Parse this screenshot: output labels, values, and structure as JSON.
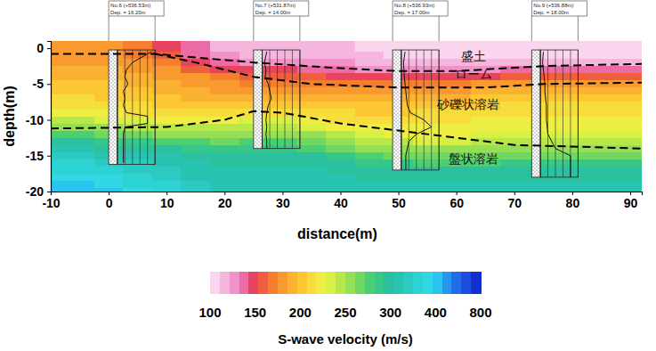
{
  "chart_data": {
    "type": "heatmap",
    "x_label": "distance(m)",
    "y_label": "depth(m)",
    "xlim": [
      -10,
      92
    ],
    "ylim": [
      -20,
      1
    ],
    "xticks": [
      -10,
      0,
      10,
      20,
      30,
      40,
      50,
      60,
      70,
      80,
      90
    ],
    "yticks": [
      0,
      -5,
      -10,
      -15,
      -20
    ],
    "x_edges": [
      -10,
      -7.5,
      -2.5,
      2.5,
      7.5,
      12.5,
      17.5,
      22.5,
      27.5,
      32.5,
      37.5,
      42.5,
      47.5,
      52.5,
      57.5,
      62.5,
      67.5,
      72.5,
      77.5,
      82.5,
      87.5,
      92
    ],
    "y_edges": [
      1,
      -0.5,
      -1.5,
      -2.5,
      -3.5,
      -4.5,
      -5.5,
      -6.5,
      -7.5,
      -8.5,
      -9.5,
      -10.5,
      -11.5,
      -12.5,
      -13.5,
      -14.5,
      -15.5,
      -16.5,
      -17.5,
      -18.5,
      -19.5,
      -20
    ],
    "values": [
      [
        175,
        175,
        175,
        165,
        150,
        135,
        120,
        115,
        115,
        115,
        115,
        110,
        110,
        110,
        110,
        110,
        110,
        110,
        110,
        110,
        110
      ],
      [
        180,
        180,
        180,
        170,
        155,
        140,
        125,
        120,
        120,
        120,
        120,
        115,
        110,
        110,
        110,
        110,
        110,
        110,
        110,
        110,
        110
      ],
      [
        185,
        185,
        185,
        180,
        165,
        150,
        135,
        130,
        130,
        130,
        125,
        120,
        115,
        115,
        115,
        115,
        115,
        115,
        115,
        115,
        115
      ],
      [
        190,
        190,
        190,
        185,
        175,
        160,
        150,
        145,
        145,
        140,
        135,
        130,
        130,
        130,
        130,
        130,
        135,
        140,
        140,
        140,
        140
      ],
      [
        195,
        195,
        195,
        190,
        185,
        175,
        165,
        160,
        160,
        155,
        150,
        150,
        150,
        150,
        150,
        150,
        155,
        160,
        160,
        160,
        160
      ],
      [
        200,
        200,
        200,
        195,
        190,
        185,
        175,
        170,
        170,
        170,
        170,
        165,
        165,
        165,
        170,
        175,
        180,
        180,
        180,
        180,
        180
      ],
      [
        205,
        205,
        200,
        200,
        195,
        190,
        185,
        180,
        180,
        180,
        180,
        180,
        180,
        180,
        185,
        190,
        190,
        190,
        190,
        190,
        190
      ],
      [
        210,
        210,
        205,
        205,
        200,
        195,
        195,
        195,
        195,
        195,
        190,
        190,
        190,
        195,
        195,
        200,
        200,
        200,
        200,
        200,
        200
      ],
      [
        215,
        215,
        210,
        210,
        205,
        205,
        205,
        205,
        205,
        200,
        200,
        200,
        200,
        200,
        205,
        205,
        210,
        210,
        210,
        210,
        210
      ],
      [
        225,
        225,
        220,
        215,
        215,
        215,
        215,
        215,
        215,
        210,
        210,
        205,
        205,
        210,
        210,
        215,
        215,
        215,
        215,
        215,
        215
      ],
      [
        240,
        240,
        235,
        230,
        225,
        225,
        225,
        230,
        230,
        220,
        215,
        210,
        210,
        215,
        215,
        220,
        220,
        220,
        220,
        220,
        220
      ],
      [
        255,
        255,
        250,
        245,
        240,
        240,
        240,
        245,
        245,
        235,
        225,
        220,
        220,
        220,
        220,
        225,
        225,
        225,
        225,
        225,
        225
      ],
      [
        275,
        275,
        270,
        265,
        260,
        255,
        255,
        260,
        260,
        250,
        240,
        230,
        225,
        225,
        225,
        230,
        230,
        230,
        230,
        230,
        230
      ],
      [
        295,
        295,
        290,
        285,
        280,
        275,
        270,
        275,
        275,
        265,
        255,
        245,
        240,
        235,
        235,
        240,
        240,
        240,
        240,
        240,
        240
      ],
      [
        310,
        310,
        305,
        300,
        295,
        290,
        285,
        290,
        290,
        280,
        270,
        260,
        255,
        250,
        250,
        250,
        255,
        255,
        255,
        255,
        255
      ],
      [
        330,
        330,
        325,
        315,
        310,
        300,
        300,
        300,
        300,
        295,
        285,
        275,
        270,
        265,
        265,
        265,
        270,
        270,
        270,
        270,
        270
      ],
      [
        350,
        350,
        340,
        330,
        320,
        310,
        305,
        305,
        305,
        305,
        300,
        290,
        285,
        280,
        280,
        280,
        285,
        285,
        285,
        285,
        285
      ],
      [
        370,
        370,
        360,
        345,
        330,
        320,
        310,
        310,
        310,
        310,
        305,
        300,
        295,
        295,
        295,
        295,
        295,
        295,
        295,
        295,
        295
      ],
      [
        390,
        390,
        380,
        360,
        340,
        325,
        315,
        315,
        315,
        315,
        310,
        305,
        305,
        305,
        305,
        305,
        305,
        305,
        305,
        305,
        305
      ],
      [
        400,
        400,
        390,
        370,
        350,
        330,
        320,
        320,
        320,
        320,
        315,
        310,
        310,
        310,
        310,
        310,
        310,
        310,
        310,
        310,
        310
      ],
      [
        410,
        410,
        400,
        380,
        355,
        335,
        325,
        325,
        325,
        325,
        320,
        315,
        315,
        315,
        315,
        315,
        315,
        315,
        315,
        315,
        315
      ]
    ],
    "colorbar": {
      "title": "S-wave velocity (m/s)",
      "ticks": [
        100,
        150,
        200,
        250,
        300,
        400,
        800
      ],
      "colors": [
        "#f9d6ee",
        "#f5b6de",
        "#f093c9",
        "#ec6aa6",
        "#e8445f",
        "#ef5f3f",
        "#f67e2f",
        "#f99a30",
        "#fbb131",
        "#fcc732",
        "#f7dd3c",
        "#eeee42",
        "#d6f045",
        "#b6e84b",
        "#94df55",
        "#6ed862",
        "#4ccf74",
        "#36c78a",
        "#2cc19e",
        "#29c3b2",
        "#2bcbc3",
        "#2dd3d3",
        "#2fd8e3",
        "#2ac4ef",
        "#2496f0",
        "#1f6ee8",
        "#1b4edf",
        "#1330cf"
      ]
    },
    "line_style": "dashed",
    "boundaries": [
      {
        "x": [
          -10,
          0,
          8,
          25,
          40,
          50,
          60,
          75,
          92
        ],
        "y": [
          -0.8,
          -0.8,
          -0.8,
          -2.0,
          -2.8,
          -3.2,
          -3.2,
          -2.5,
          -2.2
        ]
      },
      {
        "x": [
          8,
          15,
          25,
          35,
          50,
          65,
          75,
          92
        ],
        "y": [
          -0.8,
          -2.0,
          -4.0,
          -5.0,
          -5.5,
          -5.5,
          -5.0,
          -4.8
        ]
      },
      {
        "x": [
          -10,
          10,
          20,
          25,
          30,
          40,
          50,
          60,
          70,
          92
        ],
        "y": [
          -11.2,
          -11.0,
          -10.0,
          -8.8,
          -9.0,
          -10.5,
          -11.5,
          -12.5,
          -13.5,
          -14.0
        ]
      }
    ],
    "annotations": [
      {
        "text": "盛土",
        "x": 63,
        "y": -1.2
      },
      {
        "text": "ローム",
        "x": 63,
        "y": -3.7
      },
      {
        "text": "砂礫状溶岩",
        "x": 62,
        "y": -8.0
      },
      {
        "text": "盤状溶岩",
        "x": 63,
        "y": -15.5
      }
    ],
    "n_ticks": [
      0,
      10,
      20,
      30,
      40,
      50
    ],
    "boreholes": [
      {
        "name": "No.6 (+536.53m)",
        "depth_label": "Dep. = 16.20m",
        "x": 0,
        "bottom": -16.2,
        "n_depth": [
          -0.5,
          -2,
          -3,
          -4,
          -5,
          -6,
          -7,
          -8,
          -9,
          -9.5,
          -10.5,
          -11,
          -12,
          -14,
          -16
        ],
        "n_value": [
          45,
          20,
          12,
          10,
          14,
          8,
          10,
          8,
          12,
          40,
          40,
          10,
          8,
          8,
          8
        ]
      },
      {
        "name": "No.7 (+531.87m)",
        "depth_label": "Dep. = 14.00m",
        "x": 25,
        "bottom": -14,
        "n_depth": [
          -0.5,
          -2,
          -3,
          -4,
          -5,
          -6,
          -7,
          -8,
          -9,
          -10,
          -11,
          -12,
          -13,
          -14
        ],
        "n_value": [
          6,
          3,
          5,
          4,
          8,
          10,
          12,
          8,
          6,
          5,
          6,
          5,
          6,
          6
        ]
      },
      {
        "name": "No.8 (+536.93m)",
        "depth_label": "Dep. = 17.00m",
        "x": 49,
        "bottom": -17,
        "n_depth": [
          -0.5,
          -2,
          -4,
          -6,
          -8,
          -9,
          -10,
          -11,
          -12,
          -13,
          -15,
          -17
        ],
        "n_value": [
          5,
          3,
          4,
          6,
          8,
          12,
          30,
          40,
          20,
          10,
          6,
          6
        ]
      },
      {
        "name": "No.9 (+536.88m)",
        "depth_label": "Dep. = 18.00m",
        "x": 73,
        "bottom": -18,
        "n_depth": [
          -0.5,
          -2,
          -4,
          -5,
          -6,
          -8,
          -10,
          -12,
          -14,
          -15,
          -16,
          -18
        ],
        "n_value": [
          4,
          3,
          5,
          6,
          6,
          8,
          8,
          10,
          20,
          40,
          40,
          40
        ]
      }
    ]
  }
}
